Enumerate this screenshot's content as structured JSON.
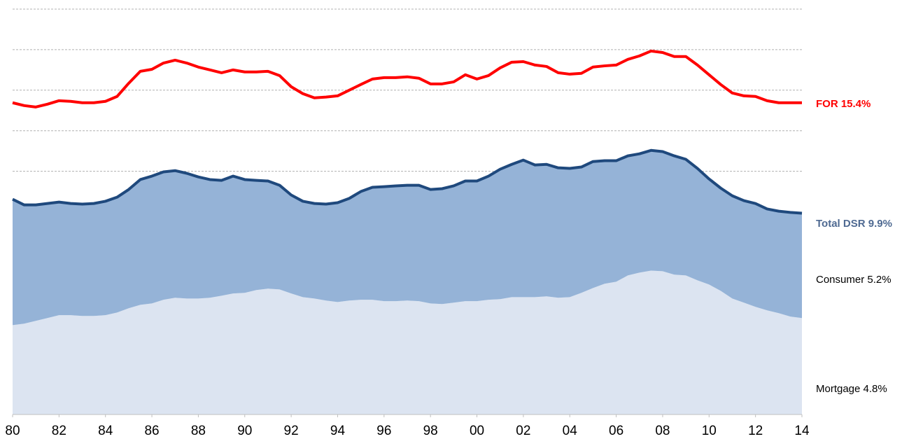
{
  "chart_data": {
    "type": "stacked-area-line",
    "x": [
      1980,
      1980.5,
      1981,
      1981.5,
      1982,
      1982.5,
      1983,
      1983.5,
      1984,
      1984.5,
      1985,
      1985.5,
      1986,
      1986.5,
      1987,
      1987.5,
      1988,
      1988.5,
      1989,
      1989.5,
      1990,
      1990.5,
      1991,
      1991.5,
      1992,
      1992.5,
      1993,
      1993.5,
      1994,
      1994.5,
      1995,
      1995.5,
      1996,
      1996.5,
      1997,
      1997.5,
      1998,
      1998.5,
      1999,
      1999.5,
      2000,
      2000.5,
      2001,
      2001.5,
      2002,
      2002.5,
      2003,
      2003.5,
      2004,
      2004.5,
      2005,
      2005.5,
      2006,
      2006.5,
      2007,
      2007.5,
      2008,
      2008.5,
      2009,
      2009.5,
      2010,
      2010.5,
      2011,
      2011.5,
      2012,
      2012.5,
      2013,
      2013.5,
      2014
    ],
    "series": [
      {
        "name": "Mortgage 4.8%",
        "type": "area",
        "color": "#dce4f1",
        "values": [
          4.41,
          4.48,
          4.62,
          4.76,
          4.9,
          4.9,
          4.86,
          4.86,
          4.9,
          5.03,
          5.24,
          5.41,
          5.48,
          5.66,
          5.76,
          5.72,
          5.72,
          5.76,
          5.86,
          5.97,
          6.0,
          6.14,
          6.21,
          6.17,
          5.97,
          5.79,
          5.72,
          5.62,
          5.55,
          5.62,
          5.66,
          5.66,
          5.59,
          5.59,
          5.62,
          5.59,
          5.48,
          5.45,
          5.52,
          5.59,
          5.59,
          5.66,
          5.69,
          5.79,
          5.79,
          5.79,
          5.83,
          5.76,
          5.79,
          6.0,
          6.24,
          6.45,
          6.55,
          6.86,
          7.0,
          7.1,
          7.07,
          6.9,
          6.86,
          6.62,
          6.41,
          6.1,
          5.72,
          5.52,
          5.31,
          5.14,
          5.0,
          4.83,
          4.76
        ]
      },
      {
        "name": "Consumer 5.2%",
        "type": "area",
        "color": "#95b3d7",
        "values": [
          6.21,
          5.86,
          5.72,
          5.65,
          5.58,
          5.51,
          5.52,
          5.55,
          5.62,
          5.69,
          5.86,
          6.18,
          6.28,
          6.31,
          6.27,
          6.18,
          6.0,
          5.83,
          5.69,
          5.79,
          5.59,
          5.41,
          5.31,
          5.14,
          4.86,
          4.73,
          4.69,
          4.76,
          4.9,
          5.04,
          5.34,
          5.55,
          5.65,
          5.69,
          5.69,
          5.72,
          5.62,
          5.69,
          5.76,
          5.93,
          5.93,
          6.1,
          6.41,
          6.55,
          6.76,
          6.52,
          6.51,
          6.41,
          6.35,
          6.21,
          6.24,
          6.07,
          5.97,
          5.9,
          5.86,
          5.93,
          5.9,
          5.86,
          5.73,
          5.52,
          5.21,
          5.07,
          5.07,
          5.03,
          5.1,
          5.0,
          5.03,
          5.14,
          5.17
        ]
      },
      {
        "name": "Total DSR 9.9%",
        "type": "line",
        "color": "#1f497d",
        "values": [
          10.62,
          10.34,
          10.34,
          10.41,
          10.48,
          10.41,
          10.38,
          10.41,
          10.52,
          10.72,
          11.1,
          11.59,
          11.76,
          11.97,
          12.03,
          11.9,
          11.72,
          11.59,
          11.55,
          11.76,
          11.59,
          11.55,
          11.52,
          11.31,
          10.83,
          10.52,
          10.41,
          10.38,
          10.45,
          10.66,
          11.0,
          11.21,
          11.24,
          11.28,
          11.31,
          11.31,
          11.1,
          11.14,
          11.28,
          11.52,
          11.52,
          11.76,
          12.1,
          12.34,
          12.55,
          12.31,
          12.34,
          12.17,
          12.14,
          12.21,
          12.48,
          12.52,
          12.52,
          12.76,
          12.86,
          13.03,
          12.97,
          12.76,
          12.59,
          12.14,
          11.62,
          11.17,
          10.79,
          10.55,
          10.41,
          10.14,
          10.03,
          9.97,
          9.93
        ]
      },
      {
        "name": "FOR 15.4%",
        "type": "line",
        "color": "#ff0000",
        "values": [
          15.38,
          15.24,
          15.17,
          15.31,
          15.48,
          15.45,
          15.38,
          15.38,
          15.45,
          15.69,
          16.34,
          16.93,
          17.03,
          17.34,
          17.48,
          17.34,
          17.14,
          17.0,
          16.86,
          17.0,
          16.9,
          16.9,
          16.93,
          16.72,
          16.17,
          15.83,
          15.62,
          15.66,
          15.72,
          16.0,
          16.28,
          16.55,
          16.62,
          16.62,
          16.66,
          16.59,
          16.31,
          16.31,
          16.41,
          16.76,
          16.55,
          16.72,
          17.1,
          17.38,
          17.41,
          17.24,
          17.17,
          16.86,
          16.79,
          16.83,
          17.14,
          17.2,
          17.24,
          17.52,
          17.69,
          17.93,
          17.86,
          17.66,
          17.66,
          17.24,
          16.76,
          16.28,
          15.86,
          15.72,
          15.69,
          15.48,
          15.38,
          15.38,
          15.38
        ]
      }
    ],
    "xlim": [
      1980,
      2014
    ],
    "xticks": [
      {
        "value": 1980,
        "label": "80"
      },
      {
        "value": 1982,
        "label": "82"
      },
      {
        "value": 1984,
        "label": "84"
      },
      {
        "value": 1986,
        "label": "86"
      },
      {
        "value": 1988,
        "label": "88"
      },
      {
        "value": 1990,
        "label": "90"
      },
      {
        "value": 1992,
        "label": "92"
      },
      {
        "value": 1994,
        "label": "94"
      },
      {
        "value": 1996,
        "label": "96"
      },
      {
        "value": 1998,
        "label": "98"
      },
      {
        "value": 2000,
        "label": "00"
      },
      {
        "value": 2002,
        "label": "02"
      },
      {
        "value": 2004,
        "label": "04"
      },
      {
        "value": 2006,
        "label": "06"
      },
      {
        "value": 2008,
        "label": "08"
      },
      {
        "value": 2010,
        "label": "10"
      },
      {
        "value": 2012,
        "label": "12"
      },
      {
        "value": 2014,
        "label": "14"
      }
    ],
    "ylim": [
      0,
      20
    ],
    "yticks": [
      12,
      14,
      16,
      18,
      20
    ],
    "grid": true
  }
}
